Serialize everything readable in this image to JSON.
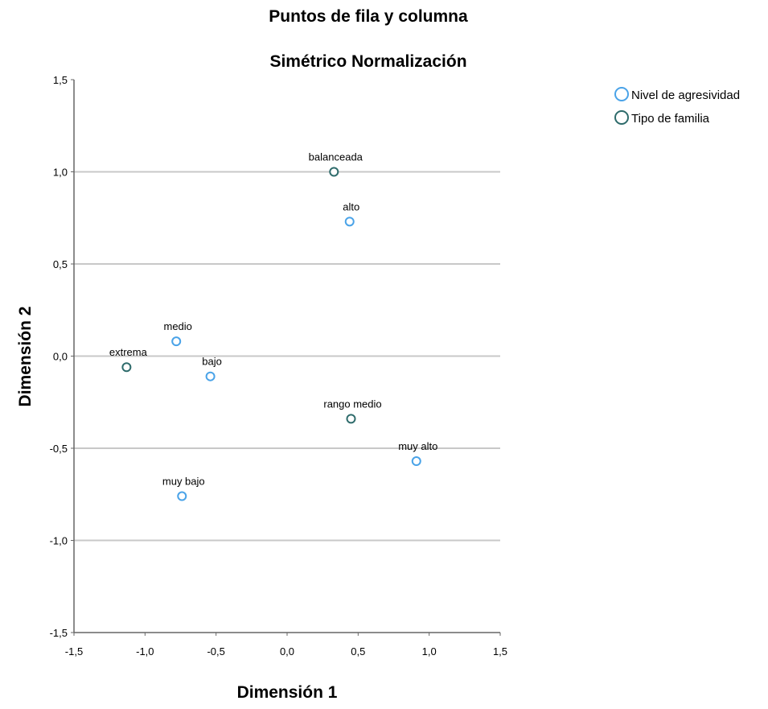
{
  "chart_data": {
    "type": "scatter",
    "title": "Puntos de fila y columna",
    "subtitle": "Simétrico Normalización",
    "xlabel": "Dimensión 1",
    "ylabel": "Dimensión 2",
    "xlim": [
      -1.5,
      1.5
    ],
    "ylim": [
      -1.5,
      1.5
    ],
    "x_ticks": [
      "-1,5",
      "-1,0",
      "-0,5",
      "0,0",
      "0,5",
      "1,0",
      "1,5"
    ],
    "y_ticks": [
      "1,5",
      "1,0",
      "0,5",
      "0,0",
      "-0,5",
      "-1,0",
      "-1,5"
    ],
    "grid": "horizontal",
    "legend_position": "top-right",
    "series": [
      {
        "name": "Nivel de agresividad",
        "color": "#4aa3e8",
        "points": [
          {
            "label": "alto",
            "x": 0.44,
            "y": 0.73
          },
          {
            "label": "medio",
            "x": -0.78,
            "y": 0.08
          },
          {
            "label": "bajo",
            "x": -0.54,
            "y": -0.11
          },
          {
            "label": "muy bajo",
            "x": -0.74,
            "y": -0.76
          },
          {
            "label": "muy alto",
            "x": 0.91,
            "y": -0.57
          }
        ]
      },
      {
        "name": "Tipo de familia",
        "color": "#2e6b6b",
        "points": [
          {
            "label": "balanceada",
            "x": 0.33,
            "y": 1.0
          },
          {
            "label": "extrema",
            "x": -1.13,
            "y": -0.06
          },
          {
            "label": "rango medio",
            "x": 0.45,
            "y": -0.34
          }
        ]
      }
    ]
  }
}
